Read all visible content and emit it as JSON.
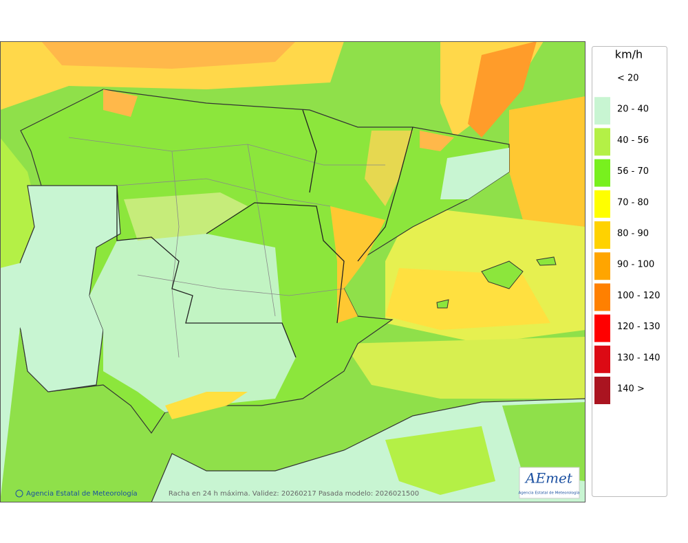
{
  "legend": {
    "title": "km/h",
    "items": [
      {
        "label": "< 20",
        "color": null
      },
      {
        "label": "20 - 40",
        "color": "#c8f5d2"
      },
      {
        "label": "40 - 56",
        "color": "#b4f046"
      },
      {
        "label": "56 - 70",
        "color": "#78f01e"
      },
      {
        "label": "70 - 80",
        "color": "#ffff00"
      },
      {
        "label": "80 - 90",
        "color": "#ffd200"
      },
      {
        "label": "90 - 100",
        "color": "#ffa500"
      },
      {
        "label": "100 - 120",
        "color": "#ff8000"
      },
      {
        "label": "120 - 130",
        "color": "#ff0000"
      },
      {
        "label": "130 - 140",
        "color": "#dc0a14"
      },
      {
        "label": "140 >",
        "color": "#aa1420"
      }
    ]
  },
  "credit": "Agencia Estatal de Meteorología",
  "caption": "Racha en 24 h máxima. Validez: 20260217 Pasada modelo: 2026021500",
  "logo": {
    "name": "AEmet",
    "subtitle": "Agencia Estatal de Meteorología"
  }
}
